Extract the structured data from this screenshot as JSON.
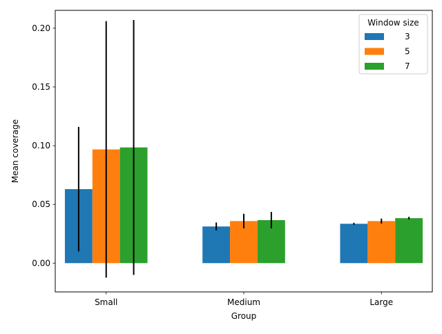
{
  "chart_data": {
    "type": "bar",
    "xlabel": "Group",
    "ylabel": "Mean coverage",
    "categories": [
      "Small",
      "Medium",
      "Large"
    ],
    "ylim": [
      -0.0245,
      0.2152
    ],
    "yticks": [
      0.0,
      0.05,
      0.1,
      0.15,
      0.2
    ],
    "ytick_labels": [
      "0.00",
      "0.05",
      "0.10",
      "0.15",
      "0.20"
    ],
    "grid": false,
    "legend": {
      "title": "Window size",
      "placement": "top-right"
    },
    "series": [
      {
        "name": "3",
        "color": "#1f77b4",
        "values": [
          0.063,
          0.0312,
          0.0335
        ],
        "err": [
          0.053,
          0.0034,
          0.0009
        ]
      },
      {
        "name": "5",
        "color": "#ff7f0e",
        "values": [
          0.0968,
          0.0358,
          0.0358
        ],
        "err": [
          0.1092,
          0.0062,
          0.0021
        ]
      },
      {
        "name": "7",
        "color": "#2ca02c",
        "values": [
          0.0985,
          0.0366,
          0.0383
        ],
        "err": [
          0.1085,
          0.007,
          0.0011
        ]
      }
    ]
  }
}
